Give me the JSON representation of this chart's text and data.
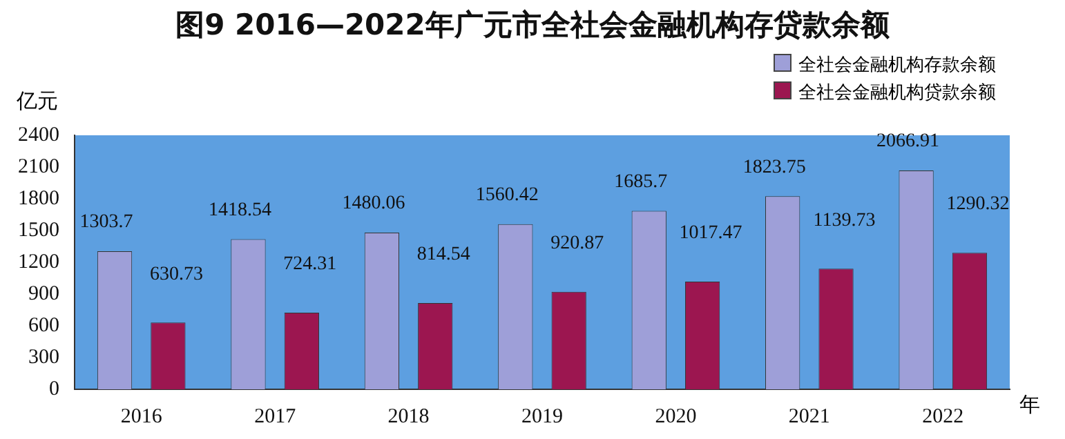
{
  "chart_data": {
    "type": "bar",
    "title": "图9  2016—2022年广元市全社会金融机构存贷款余额",
    "ylabel": "亿元",
    "xlabel": "年",
    "categories": [
      "2016",
      "2017",
      "2018",
      "2019",
      "2020",
      "2021",
      "2022"
    ],
    "series": [
      {
        "name": "全社会金融机构存款余额",
        "color": "#9e9fd8",
        "values": [
          1303.7,
          1418.54,
          1480.06,
          1560.42,
          1685.7,
          1823.75,
          2066.91
        ]
      },
      {
        "name": "全社会金融机构贷款余额",
        "color": "#9c1650",
        "values": [
          630.73,
          724.31,
          814.54,
          920.87,
          1017.47,
          1139.73,
          1290.32
        ]
      }
    ],
    "ylim": [
      0,
      2400
    ],
    "yticks": [
      0,
      300,
      600,
      900,
      1200,
      1500,
      1800,
      2100,
      2400
    ],
    "grid": false,
    "legend": "top right",
    "data_labels": true
  }
}
